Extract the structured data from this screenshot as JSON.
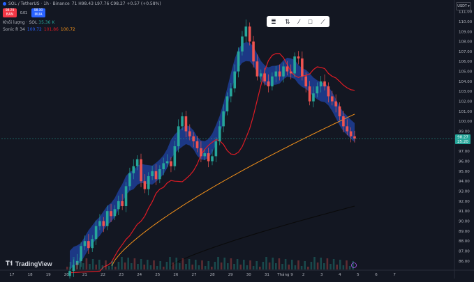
{
  "header": {
    "symbol": "SOL / TetherUS · 1h · Binance",
    "ohlc": "71 H98.43 L97.76 C98.27 +0.57 (+0.58%)",
    "sell_price": "98.29",
    "sell_label": "BÁN",
    "spread": "0.01",
    "buy_price": "98.30",
    "buy_label": "MUA",
    "volume_label": "Khối lượng · SOL",
    "volume_value": "35.36 K",
    "ma_label": "Sonic R 34",
    "ma_values": [
      "100.72",
      "101.86",
      "100.72"
    ],
    "currency": "USDT ▾"
  },
  "colors": {
    "background": "#131722",
    "up": "#26a69a",
    "down": "#ef5350",
    "ema_band": "#2962ff",
    "ma_red": "#e01b24",
    "ma_orange": "#f7931a",
    "ma_black": "#0a0a0a",
    "price_tag": "#26a69a"
  },
  "toolbar": {
    "icons": [
      "ruler-icon",
      "measure-icon",
      "brush-icon",
      "rect-icon",
      "line-icon"
    ]
  },
  "price_tag": {
    "price": "98.27",
    "countdown": "25:20"
  },
  "logo_text": "TradingView",
  "chart_data": {
    "type": "candlestick",
    "y_ticks": [
      "111.00",
      "110.00",
      "109.00",
      "108.00",
      "107.00",
      "106.00",
      "105.00",
      "104.00",
      "103.00",
      "102.00",
      "101.00",
      "100.00",
      "99.00",
      "98.00",
      "97.00",
      "96.00",
      "95.00",
      "94.00",
      "93.00",
      "92.00",
      "91.00",
      "90.00",
      "89.00",
      "88.00",
      "87.00",
      "86.00"
    ],
    "ylim": [
      85.5,
      111.6
    ],
    "x_ticks": [
      "17",
      "18",
      "19",
      "20",
      "21",
      "22",
      "23",
      "24",
      "25",
      "26",
      "27",
      "28",
      "29",
      "30",
      "31",
      "Tháng 9",
      "2",
      "3",
      "4",
      "5",
      "6",
      "7"
    ],
    "closes": [
      85.0,
      85.6,
      86.0,
      87.5,
      88.0,
      87.3,
      88.2,
      89.5,
      90.0,
      89.5,
      91.0,
      90.5,
      91.2,
      92.0,
      91.5,
      93.5,
      94.8,
      95.5,
      96.2,
      94.0,
      93.2,
      94.5,
      95.0,
      94.2,
      95.2,
      95.8,
      96.0,
      95.5,
      97.5,
      99.5,
      100.5,
      99.0,
      98.5,
      98.0,
      97.3,
      96.5,
      96.8,
      96.0,
      96.5,
      98.0,
      99.5,
      101.0,
      102.5,
      103.3,
      105.0,
      107.0,
      108.5,
      109.5,
      108.0,
      106.0,
      104.5,
      104.8,
      104.0,
      103.5,
      104.5,
      105.0,
      104.5,
      105.5,
      105.0,
      104.8,
      106.5,
      106.3,
      104.5,
      103.5,
      102.0,
      102.8,
      103.5,
      104.0,
      103.5,
      102.5,
      102.0,
      101.5,
      100.5,
      99.5,
      99.0,
      98.5,
      98.27
    ],
    "ema_band_upper": 98,
    "ma_red_end": 101.86,
    "ma_orange_end": 100.72
  }
}
